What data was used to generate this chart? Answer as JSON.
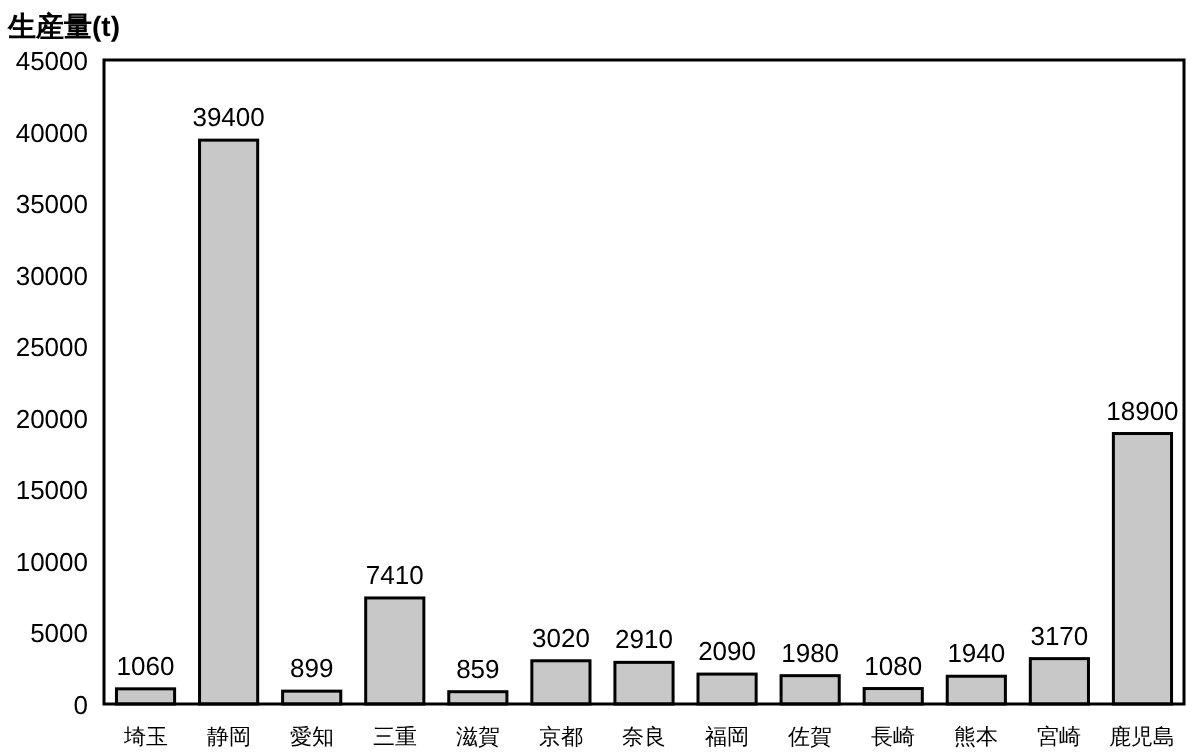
{
  "chart_data": {
    "type": "bar",
    "ylabel": "生産量(t)",
    "categories": [
      "埼玉",
      "静岡",
      "愛知",
      "三重",
      "滋賀",
      "京都",
      "奈良",
      "福岡",
      "佐賀",
      "長崎",
      "熊本",
      "宮崎",
      "鹿児島"
    ],
    "values": [
      1060,
      39400,
      899,
      7410,
      859,
      3020,
      2910,
      2090,
      1980,
      1080,
      1940,
      3170,
      18900
    ],
    "color": "#c8c8c8",
    "ylim": [
      0,
      45000
    ],
    "yticks": [
      0,
      5000,
      10000,
      15000,
      20000,
      25000,
      30000,
      35000,
      40000,
      45000
    ],
    "data_labels": true
  }
}
